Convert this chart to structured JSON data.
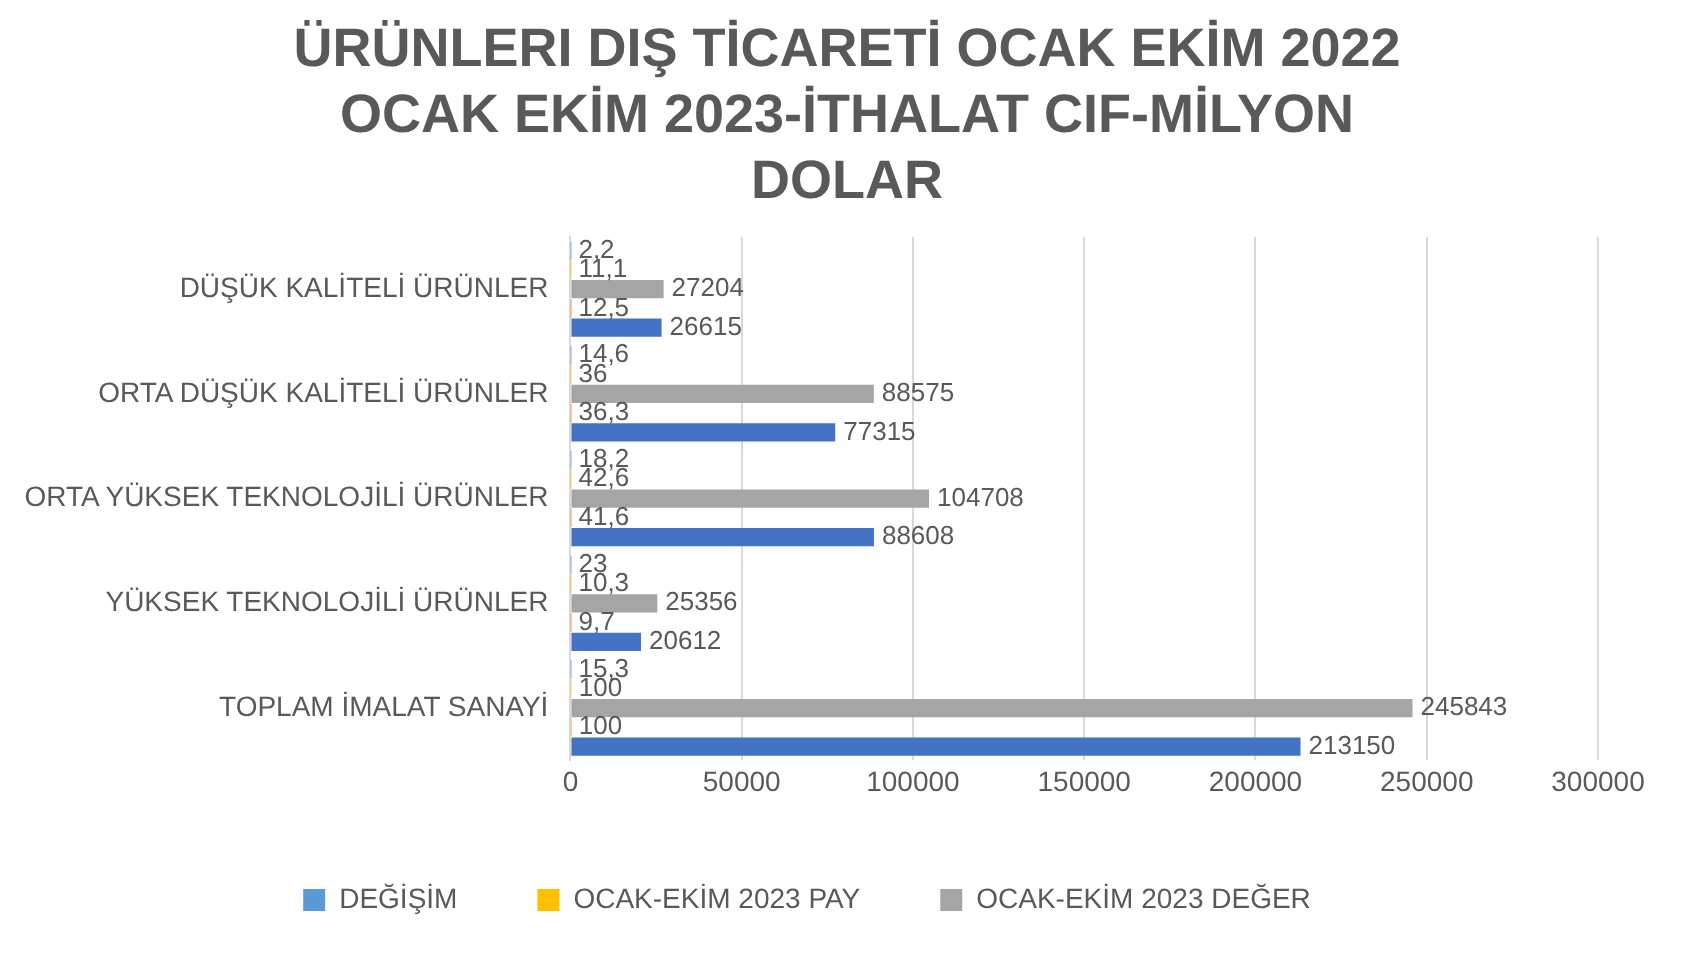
{
  "chart_data": {
    "type": "bar",
    "orientation": "horizontal",
    "title": "ÜRÜNLERI DIŞ TİCARETİ  OCAK EKİM 2022 OCAK EKİM 2023-İTHALAT CIF-MİLYON DOLAR",
    "categories": [
      "DÜŞÜK KALİTELİ ÜRÜNLER",
      "ORTA DÜŞÜK KALİTELİ ÜRÜNLER",
      "ORTA YÜKSEK TEKNOLOJİLİ ÜRÜNLER",
      "YÜKSEK TEKNOLOJİLİ ÜRÜNLER",
      "TOPLAM İMALAT SANAYİ"
    ],
    "series": [
      {
        "name": "DEĞİŞİM",
        "color": "#5b9bd5",
        "values": [
          2.2,
          14.6,
          18.2,
          23,
          15.3
        ],
        "value_labels": [
          "2,2",
          "14,6",
          "18,2",
          "23",
          "15,3"
        ]
      },
      {
        "name": "OCAK-EKİM 2023 PAY",
        "color": "#ffc000",
        "values": [
          11.1,
          36,
          42.6,
          10.3,
          100
        ],
        "value_labels": [
          "11,1",
          "36",
          "42,6",
          "10,3",
          "100"
        ]
      },
      {
        "name": "OCAK-EKİM 2023 DEĞER",
        "color": "#a5a5a5",
        "values": [
          27204,
          88575,
          104708,
          25356,
          245843
        ],
        "value_labels": [
          "27204",
          "88575",
          "104708",
          "25356",
          "245843"
        ]
      },
      {
        "color": "#ed7d31",
        "values": [
          12.5,
          36.3,
          41.6,
          9.7,
          100
        ],
        "value_labels": [
          "12,5",
          "36,3",
          "41,6",
          "9,7",
          "100"
        ]
      },
      {
        "color": "#4472c4",
        "values": [
          26615,
          77315,
          88608,
          20612,
          213150
        ],
        "value_labels": [
          "26615",
          "77315",
          "88608",
          "20612",
          "213150"
        ]
      }
    ],
    "xlim": [
      0,
      300000
    ],
    "xticks": [
      0,
      50000,
      100000,
      150000,
      200000,
      250000,
      300000
    ],
    "grid": "x",
    "legend": "bottom"
  }
}
